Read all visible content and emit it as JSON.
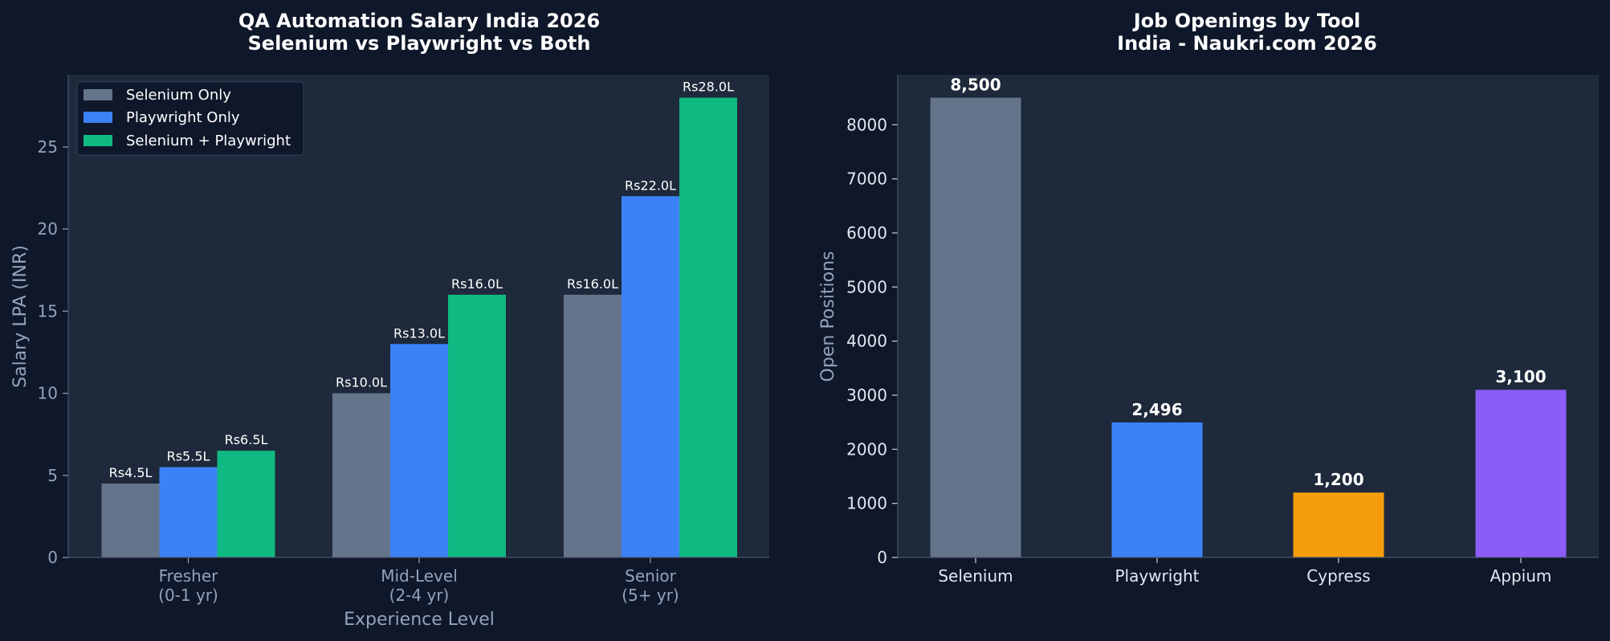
{
  "chart_data": [
    {
      "type": "bar",
      "title": [
        "QA Automation Salary India 2026",
        "Selenium vs Playwright vs Both"
      ],
      "xlabel": "Experience Level",
      "ylabel": "Salary LPA (INR)",
      "categories": [
        [
          "Fresher",
          "(0-1 yr)"
        ],
        [
          "Mid-Level",
          "(2-4 yr)"
        ],
        [
          "Senior",
          "(5+ yr)"
        ]
      ],
      "ylim": [
        0,
        29.4
      ],
      "yticks": [
        0,
        5,
        10,
        15,
        20,
        25
      ],
      "legend_position": "upper-left",
      "series": [
        {
          "name": "Selenium Only",
          "color": "#64748b",
          "values": [
            4.5,
            10.0,
            16.0
          ],
          "labels": [
            "Rs4.5L",
            "Rs10.0L",
            "Rs16.0L"
          ]
        },
        {
          "name": "Playwright Only",
          "color": "#3b82f6",
          "values": [
            5.5,
            13.0,
            22.0
          ],
          "labels": [
            "Rs5.5L",
            "Rs13.0L",
            "Rs22.0L"
          ]
        },
        {
          "name": "Selenium + Playwright",
          "color": "#10b981",
          "values": [
            6.5,
            16.0,
            28.0
          ],
          "labels": [
            "Rs6.5L",
            "Rs16.0L",
            "Rs28.0L"
          ]
        }
      ]
    },
    {
      "type": "bar",
      "title": [
        "Job Openings by Tool",
        "India - Naukri.com 2026"
      ],
      "xlabel": "",
      "ylabel": "Open Positions",
      "categories": [
        "Selenium",
        "Playwright",
        "Cypress",
        "Appium"
      ],
      "values": [
        8500,
        2496,
        1200,
        3100
      ],
      "labels": [
        "8,500",
        "2,496",
        "1,200",
        "3,100"
      ],
      "colors": [
        "#64748b",
        "#3b82f6",
        "#f59e0b",
        "#8b5cf6"
      ],
      "ylim": [
        0,
        8925
      ],
      "yticks": [
        0,
        1000,
        2000,
        3000,
        4000,
        5000,
        6000,
        7000,
        8000
      ]
    }
  ]
}
